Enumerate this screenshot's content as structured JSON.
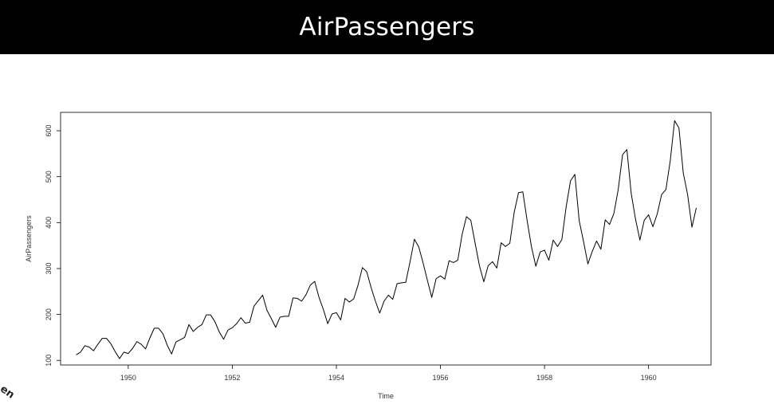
{
  "page": {
    "title": "AirPassengers",
    "title_bar_color": "#000000",
    "title_color": "#ffffff",
    "background": "#ffffff"
  },
  "chart_data": {
    "type": "line",
    "title": "",
    "xlabel": "Time",
    "ylabel": "AirPassengers",
    "x_start": 1949,
    "x_frequency": 12,
    "xlim": [
      1948.7,
      1961.2
    ],
    "ylim": [
      90,
      640
    ],
    "x_ticks": [
      1950,
      1952,
      1954,
      1956,
      1958,
      1960
    ],
    "x_tick_labels": [
      "1950",
      "1952",
      "1954",
      "1956",
      "1958",
      "1960"
    ],
    "y_ticks": [
      100,
      200,
      300,
      400,
      500,
      600
    ],
    "y_tick_labels": [
      "100",
      "200",
      "300",
      "400",
      "500",
      "600"
    ],
    "grid": false,
    "line_color": "#000000",
    "values": [
      112,
      118,
      132,
      129,
      121,
      135,
      148,
      148,
      136,
      119,
      104,
      118,
      115,
      126,
      141,
      135,
      125,
      149,
      170,
      170,
      158,
      133,
      114,
      140,
      145,
      150,
      178,
      163,
      172,
      178,
      199,
      199,
      184,
      162,
      146,
      166,
      171,
      180,
      193,
      181,
      183,
      218,
      230,
      242,
      209,
      191,
      172,
      194,
      196,
      196,
      236,
      235,
      229,
      243,
      264,
      272,
      237,
      211,
      180,
      201,
      204,
      188,
      235,
      227,
      234,
      264,
      302,
      293,
      259,
      229,
      203,
      229,
      242,
      233,
      267,
      269,
      270,
      315,
      364,
      347,
      312,
      274,
      237,
      278,
      284,
      277,
      317,
      313,
      318,
      374,
      413,
      405,
      355,
      306,
      271,
      306,
      315,
      301,
      356,
      348,
      355,
      422,
      465,
      467,
      404,
      347,
      305,
      336,
      340,
      318,
      362,
      348,
      363,
      435,
      491,
      505,
      404,
      359,
      310,
      337,
      360,
      342,
      406,
      396,
      420,
      472,
      548,
      559,
      463,
      407,
      362,
      405,
      417,
      391,
      419,
      461,
      472,
      535,
      622,
      606,
      508,
      461,
      390,
      432
    ]
  }
}
